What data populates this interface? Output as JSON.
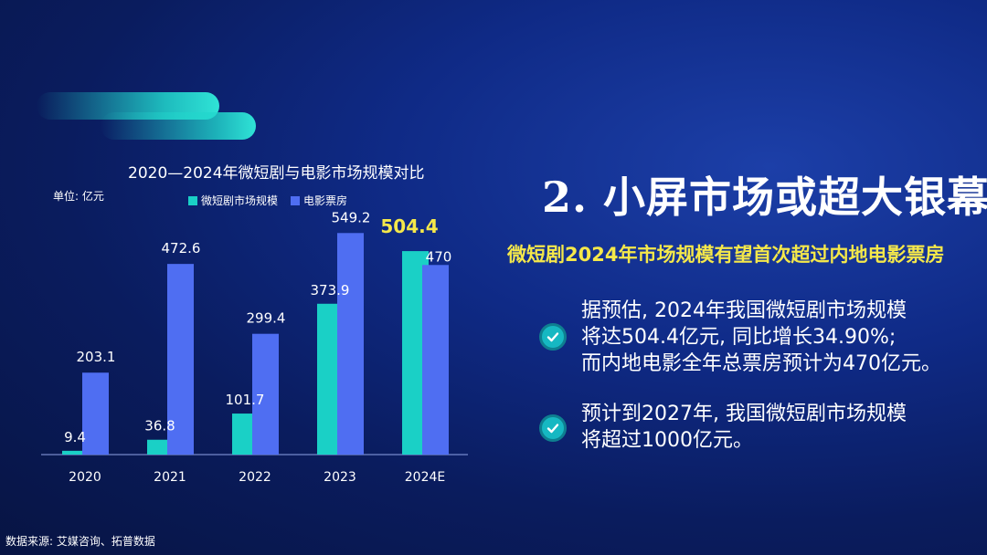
{
  "chart_data": {
    "type": "bar",
    "title": "2020—2024年微短剧与电影市场规模对比",
    "unit_label": "单位: 亿元",
    "categories": [
      "2020",
      "2021",
      "2022",
      "2023",
      "2024E"
    ],
    "series": [
      {
        "name": "微短剧市场规模",
        "color": "#1ad0c6",
        "values": [
          9.4,
          36.8,
          101.7,
          373.9,
          504.4
        ],
        "labels": [
          "9.4",
          "36.8",
          "101.7",
          "373.9",
          "504.4"
        ]
      },
      {
        "name": "电影票房",
        "color": "#4f6ef2",
        "values": [
          203.1,
          472.6,
          299.4,
          549.2,
          470
        ],
        "labels": [
          "203.1",
          "472.6",
          "299.4",
          "549.2",
          "470"
        ]
      }
    ],
    "highlight_label_color": "#f5e84a",
    "ylim": [
      0,
      600
    ],
    "grid": false,
    "legend_position": "top"
  },
  "source": "数据来源: 艾媒咨询、拓普数据",
  "main_title": "2. 小屏市场或超大银幕",
  "subtitle": "微短剧2024年市场规模有望首次超过内地电影票房",
  "bullets": [
    {
      "icon": "check-icon",
      "lines": [
        "据预估, 2024年我国微短剧市场规模",
        "将达504.4亿元, 同比增长34.90%;",
        "而内地电影全年总票房预计为470亿元。"
      ]
    },
    {
      "icon": "check-icon",
      "lines": [
        "预计到2027年, 我国微短剧市场规模",
        "将超过1000亿元。"
      ]
    }
  ]
}
